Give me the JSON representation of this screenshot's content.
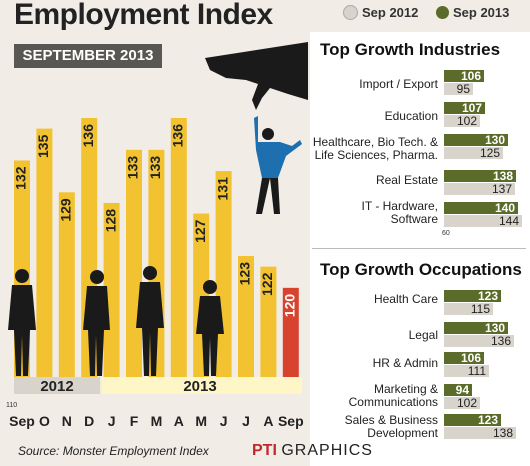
{
  "header": {
    "title": "Employment Index",
    "subtitle": "SEPTEMBER 2013",
    "legend": [
      {
        "label": "Sep 2012",
        "color": "#d8d4cc"
      },
      {
        "label": "Sep 2013",
        "color": "#5b6b2a"
      }
    ]
  },
  "footer": {
    "source": "Source: Monster Employment Index",
    "credit_pti": "PTI",
    "credit_graphics": "GRAPHICS"
  },
  "colors": {
    "bar": "#f2c230",
    "bar_highlight": "#d8432f",
    "bar_2012_band": "#d8d4cc",
    "bar_2013_band": "#fff6c8",
    "new_series": "#5b6b2a",
    "old_series": "#d8d4cc"
  },
  "chart_data": [
    {
      "type": "bar",
      "title": "Employment Index",
      "categories": [
        "Sep",
        "O",
        "N",
        "D",
        "J",
        "F",
        "M",
        "A",
        "M",
        "J",
        "J",
        "A",
        "Sep"
      ],
      "values": [
        132,
        135,
        129,
        136,
        128,
        133,
        133,
        136,
        127,
        131,
        123,
        122,
        120
      ],
      "highlight_index": 12,
      "year_groups": [
        {
          "label": "2012",
          "from": 0,
          "to": 3
        },
        {
          "label": "2013",
          "from": 4,
          "to": 12
        }
      ],
      "ylim": [
        110,
        145
      ],
      "y_min_label": "110"
    },
    {
      "type": "bar",
      "title": "Top Growth Industries",
      "categories": [
        "Import / Export",
        "Education",
        "Healthcare, Bio Tech. & Life Sciences, Pharma.",
        "Real Estate",
        "IT - Hardware, Software"
      ],
      "series": [
        {
          "name": "Sep 2013",
          "values": [
            106,
            107,
            130,
            138,
            140
          ]
        },
        {
          "name": "Sep 2012",
          "values": [
            95,
            102,
            125,
            137,
            144
          ]
        }
      ],
      "xlim": [
        60,
        145
      ],
      "x_min_label": "60"
    },
    {
      "type": "bar",
      "title": "Top Growth Occupations",
      "categories": [
        "Health Care",
        "Legal",
        "HR & Admin",
        "Marketing & Communications",
        "Sales & Business Development"
      ],
      "series": [
        {
          "name": "Sep 2013",
          "values": [
            123,
            130,
            106,
            94,
            123
          ]
        },
        {
          "name": "Sep 2012",
          "values": [
            115,
            136,
            111,
            102,
            138
          ]
        }
      ],
      "xlim": [
        60,
        145
      ]
    }
  ]
}
